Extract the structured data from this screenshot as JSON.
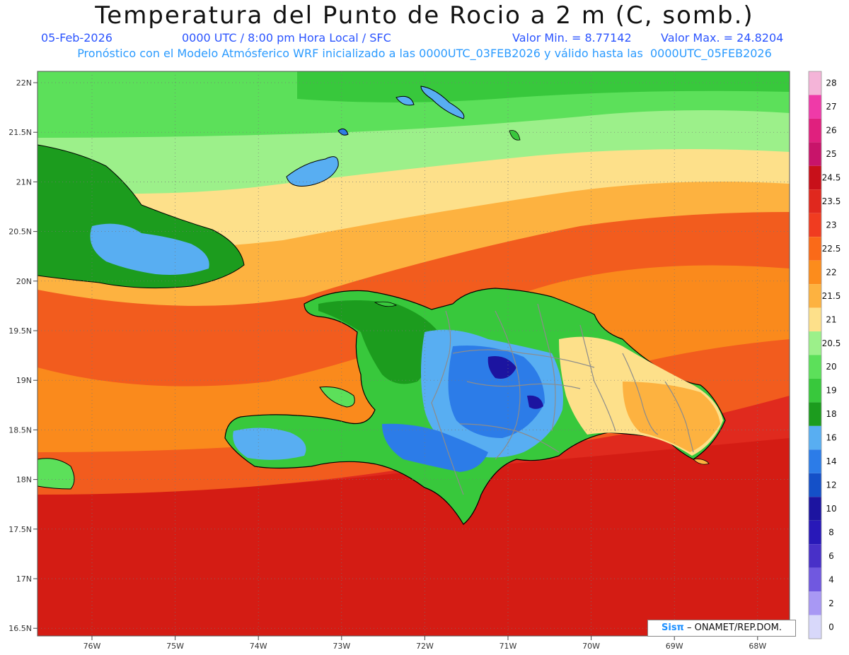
{
  "header": {
    "title": "Temperatura del Punto de Rocio a 2 m (C, somb.)",
    "date": "05-Feb-2026",
    "time": "0000 UTC / 8:00 pm Hora Local / SFC",
    "min_label": "Valor Min. = 8.77142",
    "max_label": "Valor Max. = 24.8204",
    "model_line": "Pronóstico con el Modelo Atmósferico WRF inicializado a las 0000UTC_03FEB2026 y válido hasta las  0000UTC_05FEB2026"
  },
  "map": {
    "lat_labels": [
      "22N",
      "21.5N",
      "21N",
      "20.5N",
      "20N",
      "19.5N",
      "19N",
      "18.5N",
      "18N",
      "17.5N",
      "17N",
      "16.5N"
    ],
    "lon_labels": [
      "76W",
      "75W",
      "74W",
      "73W",
      "72W",
      "71W",
      "70W",
      "69W",
      "68W"
    ]
  },
  "colorbar": {
    "levels": [
      {
        "label": "28",
        "color": "#f4b4d8"
      },
      {
        "label": "27",
        "color": "#ef3aa8"
      },
      {
        "label": "26",
        "color": "#e0207e"
      },
      {
        "label": "25",
        "color": "#c8146a"
      },
      {
        "label": "24.5",
        "color": "#c8101a"
      },
      {
        "label": "23.5",
        "color": "#e0281e"
      },
      {
        "label": "23",
        "color": "#f03c20"
      },
      {
        "label": "22.5",
        "color": "#fa6a18"
      },
      {
        "label": "22",
        "color": "#fc8c1c"
      },
      {
        "label": "21.5",
        "color": "#fdb240"
      },
      {
        "label": "21",
        "color": "#fde08a"
      },
      {
        "label": "20.5",
        "color": "#9cf08a"
      },
      {
        "label": "20",
        "color": "#5ce05a"
      },
      {
        "label": "19",
        "color": "#38c83c"
      },
      {
        "label": "18",
        "color": "#1c9c1e"
      },
      {
        "label": "16",
        "color": "#58aef2"
      },
      {
        "label": "14",
        "color": "#2c7ce8"
      },
      {
        "label": "12",
        "color": "#1450c8"
      },
      {
        "label": "10",
        "color": "#1c14a0"
      },
      {
        "label": "8",
        "color": "#2818b8"
      },
      {
        "label": "6",
        "color": "#4830c8"
      },
      {
        "label": "4",
        "color": "#7058e0"
      },
      {
        "label": "2",
        "color": "#a898f4"
      },
      {
        "label": "0",
        "color": "#d8d8fa"
      }
    ]
  },
  "credit": {
    "brand": "Sisπ",
    "text": " – ONAMET/REP.DOM."
  }
}
